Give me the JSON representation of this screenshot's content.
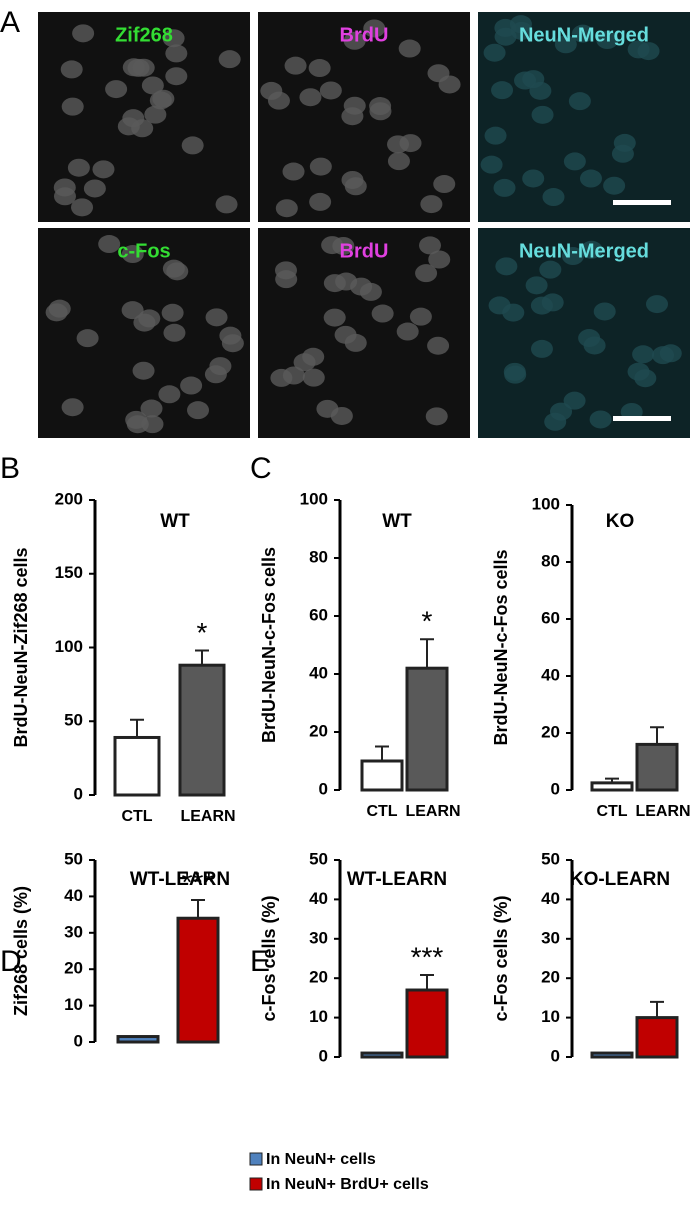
{
  "panel_labels": [
    "A",
    "B",
    "C",
    "D",
    "E"
  ],
  "images": [
    {
      "label": "Zif268",
      "color": "#33dd33"
    },
    {
      "label": "BrdU",
      "color": "#e040e0"
    },
    {
      "label": "NeuN-Merged",
      "color": "#66dddd"
    },
    {
      "label": "c-Fos",
      "color": "#33dd33"
    },
    {
      "label": "BrdU",
      "color": "#e040e0"
    },
    {
      "label": "NeuN-Merged",
      "color": "#66dddd"
    }
  ],
  "legend": {
    "items": [
      {
        "name": "In NeuN+ cells",
        "color": "#4f81bd"
      },
      {
        "name": "In NeuN+ BrdU+ cells",
        "color": "#c00000"
      }
    ]
  },
  "chart_data": [
    {
      "type": "bar",
      "title": "WT",
      "y_label": "BrdU-NeuN-Zif268 cells",
      "categories": [
        "CTL",
        "LEARN"
      ],
      "values": [
        39,
        88
      ],
      "errors": [
        12,
        10
      ],
      "value_annotations": [
        null,
        "*"
      ],
      "colors": [
        "#ffffff",
        "#595959"
      ],
      "ylim": [
        0,
        200
      ],
      "yticks": [
        0,
        50,
        100,
        150,
        200
      ]
    },
    {
      "type": "bar",
      "title": "WT",
      "y_label": "BrdU-NeuN-c-Fos cells",
      "categories": [
        "CTL",
        "LEARN"
      ],
      "values": [
        10,
        42
      ],
      "errors": [
        5,
        10
      ],
      "value_annotations": [
        null,
        "*"
      ],
      "colors": [
        "#ffffff",
        "#595959"
      ],
      "ylim": [
        0,
        100
      ],
      "yticks": [
        0,
        20,
        40,
        60,
        80,
        100
      ]
    },
    {
      "type": "bar",
      "title": "KO",
      "y_label": "BrdU-NeuN-c-Fos cells",
      "categories": [
        "CTL",
        "LEARN"
      ],
      "values": [
        2.5,
        16
      ],
      "errors": [
        1.5,
        6
      ],
      "value_annotations": [
        null,
        null
      ],
      "colors": [
        "#ffffff",
        "#595959"
      ],
      "ylim": [
        0,
        100
      ],
      "yticks": [
        0,
        20,
        40,
        60,
        80,
        100
      ]
    },
    {
      "type": "bar",
      "title": "WT-LEARN",
      "y_label": "Zif268 cells (%)",
      "values": [
        1.5,
        34
      ],
      "errors": [
        0,
        5
      ],
      "value_annotations": [
        null,
        "***"
      ],
      "ylim": [
        0,
        50
      ],
      "yticks": [
        0,
        10,
        20,
        30,
        40,
        50
      ]
    },
    {
      "type": "bar",
      "title": "WT-LEARN",
      "y_label": "c-Fos cells (%)",
      "values": [
        1,
        17
      ],
      "errors": [
        0,
        3.8
      ],
      "value_annotations": [
        null,
        "***"
      ],
      "ylim": [
        0,
        50
      ],
      "yticks": [
        0,
        10,
        20,
        30,
        40,
        50
      ]
    },
    {
      "type": "bar",
      "title": "KO-LEARN",
      "y_label": "c-Fos cells (%)",
      "values": [
        1,
        10
      ],
      "errors": [
        0,
        4
      ],
      "value_annotations": [
        null,
        null
      ],
      "ylim": [
        0,
        50
      ],
      "yticks": [
        0,
        10,
        20,
        30,
        40,
        50
      ]
    }
  ]
}
